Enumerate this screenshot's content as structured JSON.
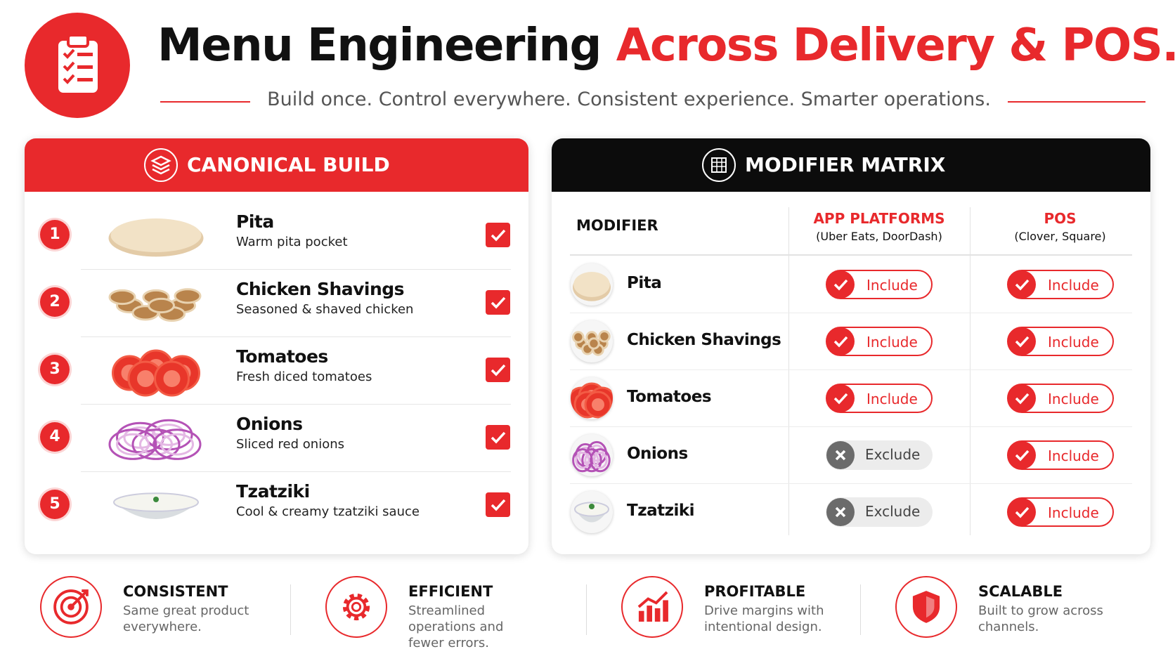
{
  "header": {
    "title_part1": "Menu Engineering",
    "title_part2": "Across Delivery & POS.",
    "subtitle": "Build once. Control everywhere. Consistent experience. Smarter operations."
  },
  "canonical": {
    "title": "CANONICAL BUILD",
    "items": [
      {
        "number": "1",
        "name": "Pita",
        "description": "Warm pita pocket"
      },
      {
        "number": "2",
        "name": "Chicken Shavings",
        "description": "Seasoned & shaved chicken"
      },
      {
        "number": "3",
        "name": "Tomatoes",
        "description": "Fresh diced tomatoes"
      },
      {
        "number": "4",
        "name": "Onions",
        "description": "Sliced red onions"
      },
      {
        "number": "5",
        "name": "Tzatziki",
        "description": "Cool & creamy tzatziki sauce"
      }
    ]
  },
  "matrix": {
    "title": "MODIFIER MATRIX",
    "columns": {
      "modifier": "MODIFIER",
      "app": "APP PLATFORMS",
      "app_sub": "(Uber Eats, DoorDash)",
      "pos": "POS",
      "pos_sub": "(Clover, Square)"
    },
    "rows": [
      {
        "name": "Pita",
        "app": "Include",
        "pos": "Include"
      },
      {
        "name": "Chicken Shavings",
        "app": "Include",
        "pos": "Include"
      },
      {
        "name": "Tomatoes",
        "app": "Include",
        "pos": "Include"
      },
      {
        "name": "Onions",
        "app": "Exclude",
        "pos": "Include"
      },
      {
        "name": "Tzatziki",
        "app": "Exclude",
        "pos": "Include"
      }
    ]
  },
  "features": [
    {
      "title": "CONSISTENT",
      "text": "Same great product everywhere."
    },
    {
      "title": "EFFICIENT",
      "text": "Streamlined operations and fewer errors."
    },
    {
      "title": "PROFITABLE",
      "text": "Drive margins with intentional design."
    },
    {
      "title": "SCALABLE",
      "text": "Built to grow across channels."
    }
  ]
}
